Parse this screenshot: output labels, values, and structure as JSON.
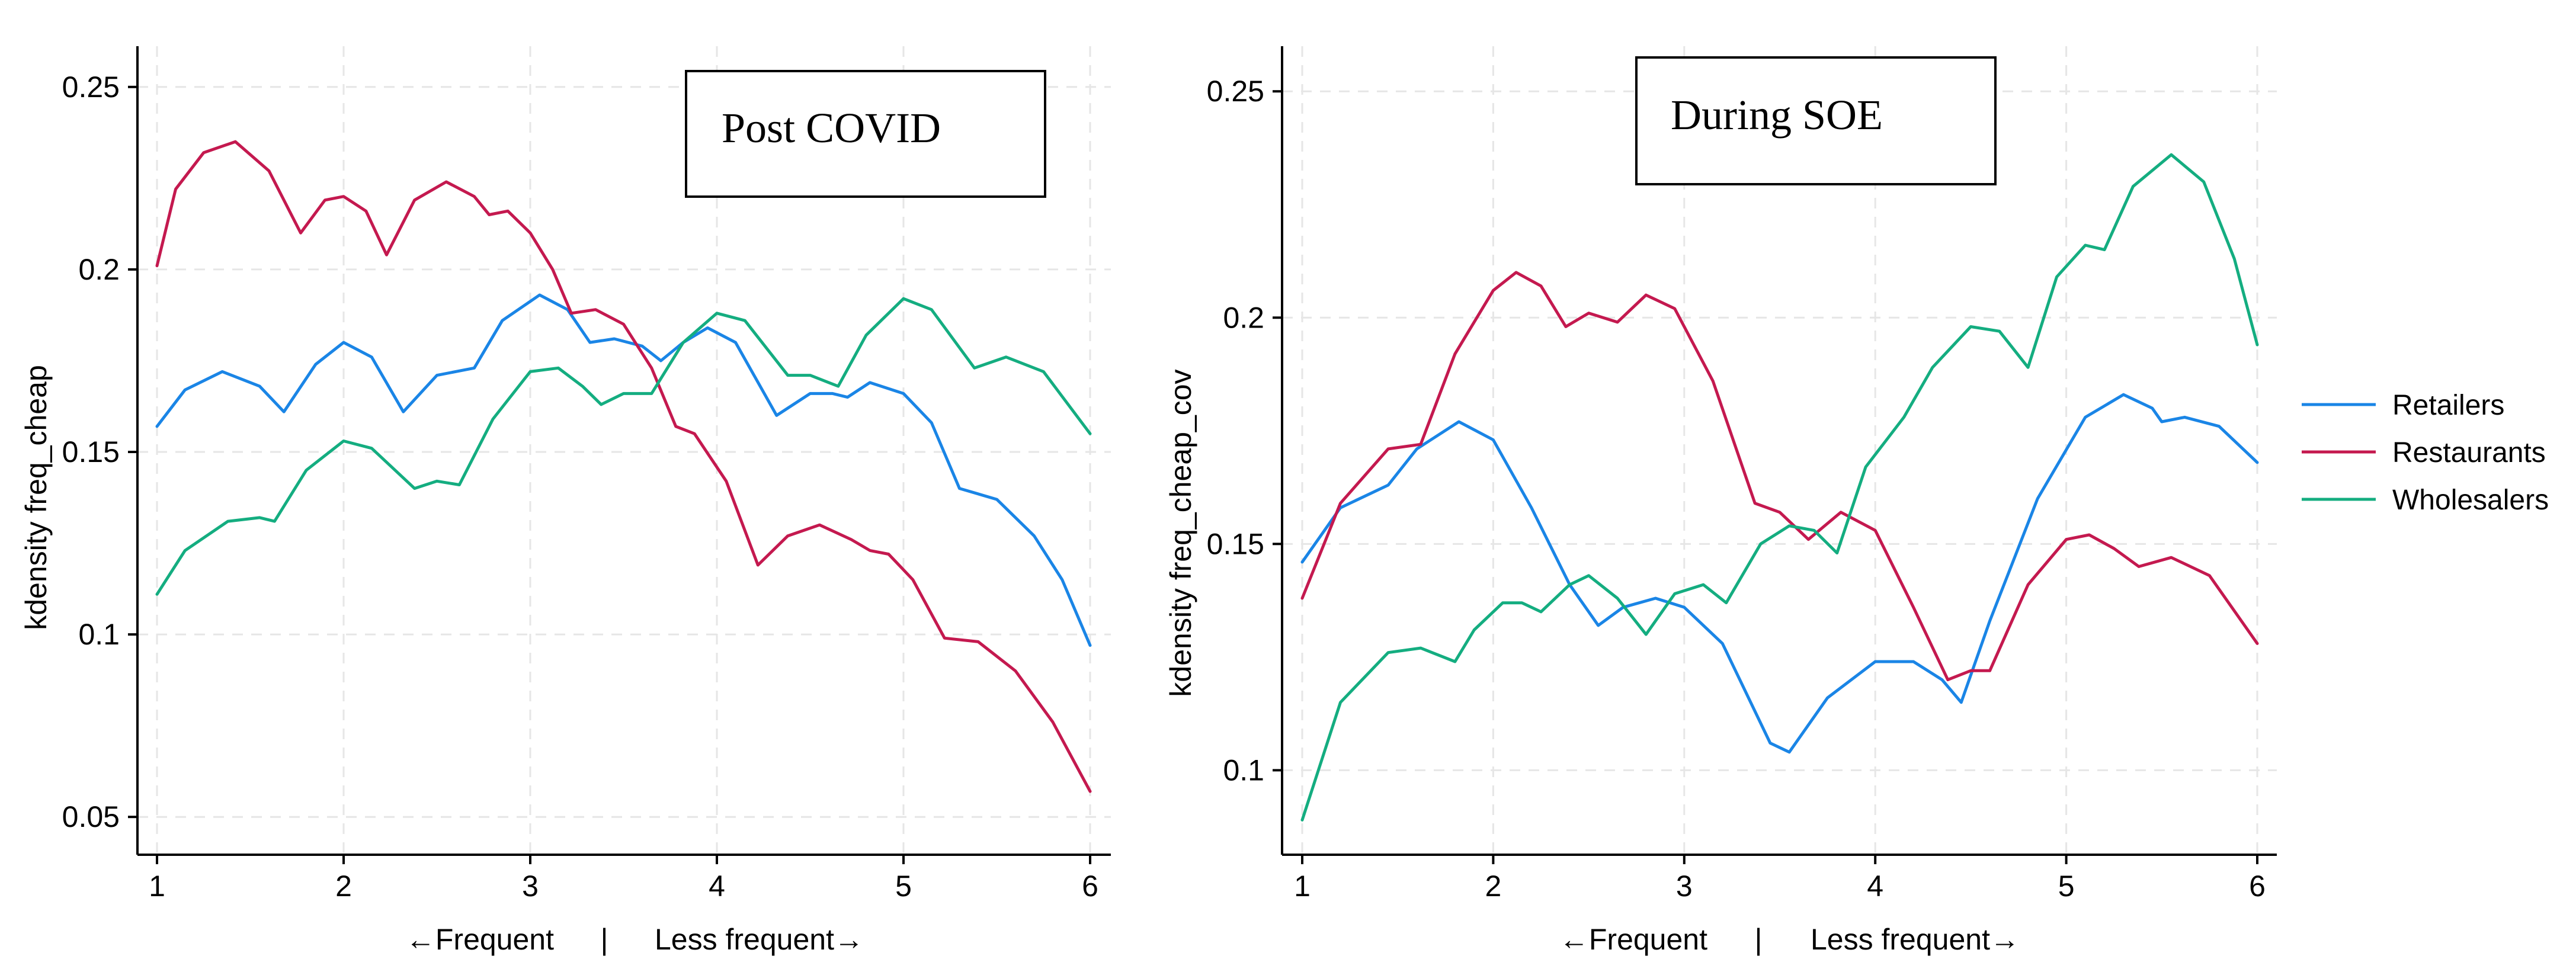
{
  "chart_data": [
    {
      "type": "line",
      "title": "",
      "annotation": "Post COVID",
      "xlabel_left": "←Frequent",
      "xlabel_sep": "|",
      "xlabel_right": "Less frequent→",
      "ylabel": "kdensity freq_cheap",
      "xlim": [
        1,
        6
      ],
      "ylim": [
        0.045,
        0.255
      ],
      "xticks": [
        1,
        2,
        3,
        4,
        5,
        6
      ],
      "xtick_labels": [
        "1",
        "2",
        "3",
        "4",
        "5",
        "6"
      ],
      "yticks": [
        0.05,
        0.1,
        0.15,
        0.2,
        0.25
      ],
      "ytick_labels": [
        "0.05",
        "0.1",
        "0.15",
        "0.2",
        "0.25"
      ],
      "grid": true,
      "series": [
        {
          "name": "Retailers",
          "color": "#1a85e6",
          "points": [
            [
              1,
              0.157
            ],
            [
              1.15,
              0.167
            ],
            [
              1.35,
              0.172
            ],
            [
              1.55,
              0.168
            ],
            [
              1.68,
              0.161
            ],
            [
              1.85,
              0.174
            ],
            [
              2.0,
              0.18
            ],
            [
              2.15,
              0.176
            ],
            [
              2.32,
              0.161
            ],
            [
              2.5,
              0.171
            ],
            [
              2.7,
              0.173
            ],
            [
              2.85,
              0.186
            ],
            [
              3.05,
              0.193
            ],
            [
              3.2,
              0.189
            ],
            [
              3.32,
              0.18
            ],
            [
              3.45,
              0.181
            ],
            [
              3.6,
              0.179
            ],
            [
              3.7,
              0.175
            ],
            [
              3.82,
              0.18
            ],
            [
              3.95,
              0.184
            ],
            [
              4.1,
              0.18
            ],
            [
              4.32,
              0.16
            ],
            [
              4.5,
              0.166
            ],
            [
              4.62,
              0.166
            ],
            [
              4.7,
              0.165
            ],
            [
              4.82,
              0.169
            ],
            [
              5.0,
              0.166
            ],
            [
              5.15,
              0.158
            ],
            [
              5.3,
              0.14
            ],
            [
              5.5,
              0.137
            ],
            [
              5.7,
              0.127
            ],
            [
              5.85,
              0.115
            ],
            [
              6.0,
              0.097
            ]
          ]
        },
        {
          "name": "Restaurants",
          "color": "#c4194f",
          "points": [
            [
              1,
              0.201
            ],
            [
              1.1,
              0.222
            ],
            [
              1.25,
              0.232
            ],
            [
              1.42,
              0.235
            ],
            [
              1.6,
              0.227
            ],
            [
              1.77,
              0.21
            ],
            [
              1.9,
              0.219
            ],
            [
              2.0,
              0.22
            ],
            [
              2.12,
              0.216
            ],
            [
              2.23,
              0.204
            ],
            [
              2.38,
              0.219
            ],
            [
              2.55,
              0.224
            ],
            [
              2.7,
              0.22
            ],
            [
              2.78,
              0.215
            ],
            [
              2.88,
              0.216
            ],
            [
              3.0,
              0.21
            ],
            [
              3.12,
              0.2
            ],
            [
              3.22,
              0.188
            ],
            [
              3.35,
              0.189
            ],
            [
              3.5,
              0.185
            ],
            [
              3.65,
              0.173
            ],
            [
              3.78,
              0.157
            ],
            [
              3.88,
              0.155
            ],
            [
              4.05,
              0.142
            ],
            [
              4.22,
              0.119
            ],
            [
              4.38,
              0.127
            ],
            [
              4.55,
              0.13
            ],
            [
              4.72,
              0.126
            ],
            [
              4.82,
              0.123
            ],
            [
              4.92,
              0.122
            ],
            [
              5.05,
              0.115
            ],
            [
              5.22,
              0.099
            ],
            [
              5.4,
              0.098
            ],
            [
              5.6,
              0.09
            ],
            [
              5.8,
              0.076
            ],
            [
              6.0,
              0.057
            ]
          ]
        },
        {
          "name": "Wholesalers",
          "color": "#14ad80",
          "points": [
            [
              1,
              0.111
            ],
            [
              1.15,
              0.123
            ],
            [
              1.38,
              0.131
            ],
            [
              1.55,
              0.132
            ],
            [
              1.63,
              0.131
            ],
            [
              1.8,
              0.145
            ],
            [
              2.0,
              0.153
            ],
            [
              2.15,
              0.151
            ],
            [
              2.38,
              0.14
            ],
            [
              2.5,
              0.142
            ],
            [
              2.62,
              0.141
            ],
            [
              2.8,
              0.159
            ],
            [
              3.0,
              0.172
            ],
            [
              3.15,
              0.173
            ],
            [
              3.28,
              0.168
            ],
            [
              3.38,
              0.163
            ],
            [
              3.5,
              0.166
            ],
            [
              3.65,
              0.166
            ],
            [
              3.82,
              0.18
            ],
            [
              4.0,
              0.188
            ],
            [
              4.15,
              0.186
            ],
            [
              4.38,
              0.171
            ],
            [
              4.5,
              0.171
            ],
            [
              4.65,
              0.168
            ],
            [
              4.8,
              0.182
            ],
            [
              5.0,
              0.192
            ],
            [
              5.15,
              0.189
            ],
            [
              5.38,
              0.173
            ],
            [
              5.55,
              0.176
            ],
            [
              5.75,
              0.172
            ],
            [
              6.0,
              0.155
            ]
          ]
        }
      ]
    },
    {
      "type": "line",
      "title": "",
      "annotation": "During SOE",
      "xlabel_left": "←Frequent",
      "xlabel_sep": "|",
      "xlabel_right": "Less frequent→",
      "ylabel": "kdensity freq_cheap_cov",
      "xlim": [
        1,
        6
      ],
      "ylim": [
        0.085,
        0.255
      ],
      "xticks": [
        1,
        2,
        3,
        4,
        5,
        6
      ],
      "xtick_labels": [
        "1",
        "2",
        "3",
        "4",
        "5",
        "6"
      ],
      "yticks": [
        0.1,
        0.15,
        0.2,
        0.25
      ],
      "ytick_labels": [
        "0.1",
        "0.15",
        "0.2",
        "0.25"
      ],
      "grid": true,
      "legend_position": "right",
      "series": [
        {
          "name": "Retailers",
          "color": "#1a85e6",
          "points": [
            [
              1,
              0.146
            ],
            [
              1.2,
              0.158
            ],
            [
              1.45,
              0.163
            ],
            [
              1.6,
              0.171
            ],
            [
              1.82,
              0.177
            ],
            [
              2.0,
              0.173
            ],
            [
              2.2,
              0.158
            ],
            [
              2.4,
              0.141
            ],
            [
              2.55,
              0.132
            ],
            [
              2.68,
              0.136
            ],
            [
              2.85,
              0.138
            ],
            [
              3.0,
              0.136
            ],
            [
              3.2,
              0.128
            ],
            [
              3.45,
              0.106
            ],
            [
              3.55,
              0.104
            ],
            [
              3.75,
              0.116
            ],
            [
              4.0,
              0.124
            ],
            [
              4.2,
              0.124
            ],
            [
              4.35,
              0.12
            ],
            [
              4.45,
              0.115
            ],
            [
              4.6,
              0.133
            ],
            [
              4.85,
              0.16
            ],
            [
              5.1,
              0.178
            ],
            [
              5.3,
              0.183
            ],
            [
              5.45,
              0.18
            ],
            [
              5.5,
              0.177
            ],
            [
              5.62,
              0.178
            ],
            [
              5.8,
              0.176
            ],
            [
              6.0,
              0.168
            ]
          ]
        },
        {
          "name": "Restaurants",
          "color": "#c4194f",
          "points": [
            [
              1,
              0.138
            ],
            [
              1.2,
              0.159
            ],
            [
              1.45,
              0.171
            ],
            [
              1.62,
              0.172
            ],
            [
              1.8,
              0.192
            ],
            [
              2.0,
              0.206
            ],
            [
              2.12,
              0.21
            ],
            [
              2.25,
              0.207
            ],
            [
              2.38,
              0.198
            ],
            [
              2.5,
              0.201
            ],
            [
              2.65,
              0.199
            ],
            [
              2.8,
              0.205
            ],
            [
              2.95,
              0.202
            ],
            [
              3.15,
              0.186
            ],
            [
              3.37,
              0.159
            ],
            [
              3.5,
              0.157
            ],
            [
              3.65,
              0.151
            ],
            [
              3.82,
              0.157
            ],
            [
              4.0,
              0.153
            ],
            [
              4.2,
              0.136
            ],
            [
              4.38,
              0.12
            ],
            [
              4.5,
              0.122
            ],
            [
              4.6,
              0.122
            ],
            [
              4.8,
              0.141
            ],
            [
              5.0,
              0.151
            ],
            [
              5.12,
              0.152
            ],
            [
              5.25,
              0.149
            ],
            [
              5.38,
              0.145
            ],
            [
              5.55,
              0.147
            ],
            [
              5.75,
              0.143
            ],
            [
              6.0,
              0.128
            ]
          ]
        },
        {
          "name": "Wholesalers",
          "color": "#14ad80",
          "points": [
            [
              1,
              0.089
            ],
            [
              1.2,
              0.115
            ],
            [
              1.45,
              0.126
            ],
            [
              1.62,
              0.127
            ],
            [
              1.8,
              0.124
            ],
            [
              1.9,
              0.131
            ],
            [
              2.05,
              0.137
            ],
            [
              2.15,
              0.137
            ],
            [
              2.25,
              0.135
            ],
            [
              2.4,
              0.141
            ],
            [
              2.5,
              0.143
            ],
            [
              2.65,
              0.138
            ],
            [
              2.8,
              0.13
            ],
            [
              2.95,
              0.139
            ],
            [
              3.1,
              0.141
            ],
            [
              3.22,
              0.137
            ],
            [
              3.4,
              0.15
            ],
            [
              3.55,
              0.154
            ],
            [
              3.68,
              0.153
            ],
            [
              3.8,
              0.148
            ],
            [
              3.95,
              0.167
            ],
            [
              4.15,
              0.178
            ],
            [
              4.3,
              0.189
            ],
            [
              4.5,
              0.198
            ],
            [
              4.65,
              0.197
            ],
            [
              4.8,
              0.189
            ],
            [
              4.95,
              0.209
            ],
            [
              5.1,
              0.216
            ],
            [
              5.2,
              0.215
            ],
            [
              5.35,
              0.229
            ],
            [
              5.55,
              0.236
            ],
            [
              5.72,
              0.23
            ],
            [
              5.88,
              0.213
            ],
            [
              6.0,
              0.194
            ]
          ]
        }
      ]
    }
  ]
}
